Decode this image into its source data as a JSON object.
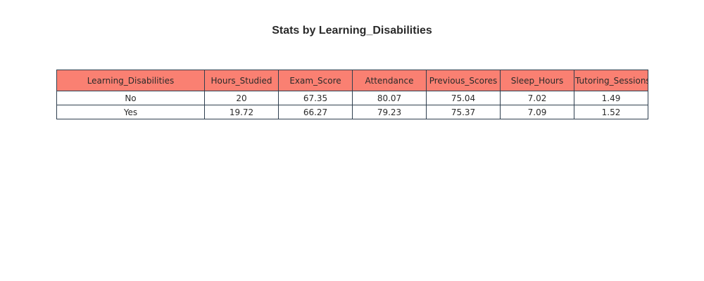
{
  "chart_data": {
    "type": "table",
    "title": "Stats by Learning_Disabilities",
    "columns": [
      "Learning_Disabilities",
      "Hours_Studied",
      "Exam_Score",
      "Attendance",
      "Previous_Scores",
      "Sleep_Hours",
      "Tutoring_Sessions"
    ],
    "rows": [
      [
        "No",
        "20",
        "67.35",
        "80.07",
        "75.04",
        "7.02",
        "1.49"
      ],
      [
        "Yes",
        "19.72",
        "66.27",
        "79.23",
        "75.37",
        "7.09",
        "1.52"
      ]
    ],
    "header_color": "#fa8072",
    "border_color": "#2f3f4f"
  }
}
